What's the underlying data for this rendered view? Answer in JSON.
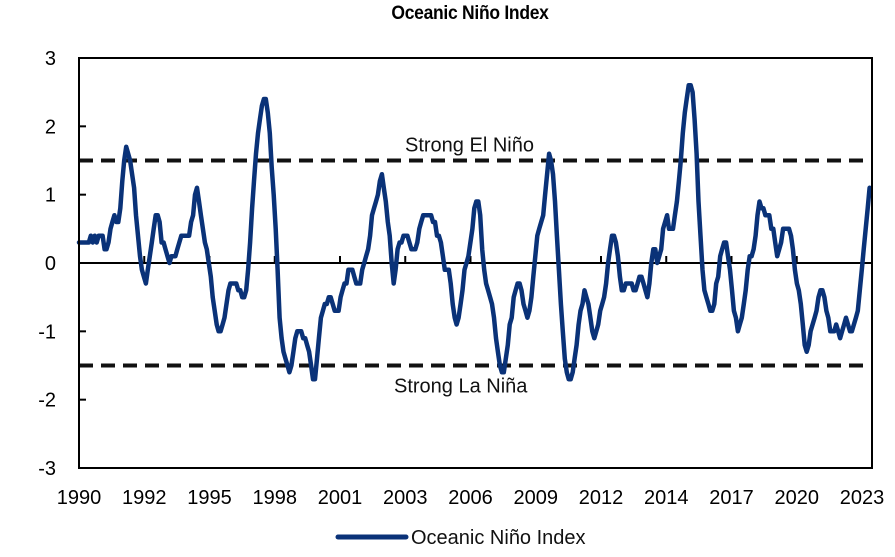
{
  "chart_data": {
    "type": "line",
    "title": "Oceanic Niño Index",
    "xlabel": "",
    "ylabel": "",
    "ylim": [
      -3,
      3
    ],
    "yticks": [
      3,
      2,
      1,
      0,
      -1,
      -2,
      -3
    ],
    "xtick_labels": [
      "1990",
      "1992",
      "1995",
      "1998",
      "2001",
      "2003",
      "2006",
      "2009",
      "2012",
      "2014",
      "2017",
      "2020",
      "2023"
    ],
    "x_range": [
      1990.0,
      2023.6
    ],
    "grid": false,
    "legend": {
      "position": "bottom-center",
      "entries": [
        "Oceanic Niño Index"
      ]
    },
    "reference_lines": [
      {
        "label": "Strong El Niño",
        "value": 1.5,
        "style": "dashed"
      },
      {
        "label": "Strong La Niña",
        "value": -1.5,
        "style": "dashed"
      }
    ],
    "colors": {
      "series": "#0a3278",
      "reference": "#111111",
      "axis": "#000000"
    },
    "series": [
      {
        "name": "Oceanic Niño Index",
        "start_year": 1990.0,
        "step_years": 0.0833333,
        "values": [
          0.3,
          0.3,
          0.3,
          0.3,
          0.3,
          0.3,
          0.4,
          0.3,
          0.4,
          0.3,
          0.4,
          0.4,
          0.4,
          0.2,
          0.2,
          0.3,
          0.5,
          0.6,
          0.7,
          0.6,
          0.6,
          0.8,
          1.2,
          1.5,
          1.7,
          1.6,
          1.5,
          1.3,
          1.1,
          0.7,
          0.4,
          0.1,
          -0.1,
          -0.2,
          -0.3,
          -0.1,
          0.1,
          0.3,
          0.5,
          0.7,
          0.7,
          0.6,
          0.3,
          0.3,
          0.2,
          0.1,
          0.0,
          0.1,
          0.1,
          0.1,
          0.2,
          0.3,
          0.4,
          0.4,
          0.4,
          0.4,
          0.4,
          0.6,
          0.7,
          1.0,
          1.1,
          0.9,
          0.7,
          0.5,
          0.3,
          0.2,
          0.0,
          -0.2,
          -0.5,
          -0.7,
          -0.9,
          -1.0,
          -1.0,
          -0.9,
          -0.8,
          -0.6,
          -0.4,
          -0.3,
          -0.3,
          -0.3,
          -0.3,
          -0.4,
          -0.4,
          -0.5,
          -0.5,
          -0.4,
          -0.1,
          0.3,
          0.8,
          1.2,
          1.6,
          1.9,
          2.1,
          2.3,
          2.4,
          2.4,
          2.2,
          1.9,
          1.4,
          1.0,
          0.5,
          -0.1,
          -0.8,
          -1.1,
          -1.3,
          -1.4,
          -1.5,
          -1.6,
          -1.5,
          -1.3,
          -1.1,
          -1.0,
          -1.0,
          -1.0,
          -1.1,
          -1.1,
          -1.2,
          -1.3,
          -1.5,
          -1.7,
          -1.7,
          -1.4,
          -1.1,
          -0.8,
          -0.7,
          -0.6,
          -0.6,
          -0.5,
          -0.5,
          -0.6,
          -0.7,
          -0.7,
          -0.7,
          -0.5,
          -0.4,
          -0.3,
          -0.3,
          -0.1,
          -0.1,
          -0.1,
          -0.2,
          -0.3,
          -0.3,
          -0.3,
          -0.1,
          0.0,
          0.1,
          0.2,
          0.4,
          0.7,
          0.8,
          0.9,
          1.0,
          1.2,
          1.3,
          1.1,
          0.9,
          0.6,
          0.4,
          0.0,
          -0.3,
          -0.1,
          0.2,
          0.3,
          0.3,
          0.4,
          0.4,
          0.4,
          0.3,
          0.2,
          0.2,
          0.2,
          0.3,
          0.5,
          0.6,
          0.7,
          0.7,
          0.7,
          0.7,
          0.7,
          0.6,
          0.6,
          0.4,
          0.4,
          0.3,
          0.1,
          -0.1,
          -0.1,
          -0.1,
          -0.3,
          -0.6,
          -0.8,
          -0.9,
          -0.8,
          -0.6,
          -0.4,
          -0.1,
          0.0,
          0.1,
          0.3,
          0.5,
          0.8,
          0.9,
          0.9,
          0.7,
          0.2,
          -0.1,
          -0.3,
          -0.4,
          -0.5,
          -0.6,
          -0.8,
          -1.1,
          -1.3,
          -1.5,
          -1.6,
          -1.6,
          -1.4,
          -1.2,
          -0.9,
          -0.8,
          -0.5,
          -0.4,
          -0.3,
          -0.3,
          -0.4,
          -0.6,
          -0.7,
          -0.8,
          -0.7,
          -0.5,
          -0.2,
          0.1,
          0.4,
          0.5,
          0.6,
          0.7,
          1.0,
          1.3,
          1.6,
          1.5,
          1.3,
          0.9,
          0.4,
          -0.1,
          -0.6,
          -1.0,
          -1.4,
          -1.6,
          -1.7,
          -1.7,
          -1.6,
          -1.4,
          -1.2,
          -0.9,
          -0.7,
          -0.6,
          -0.4,
          -0.5,
          -0.6,
          -0.8,
          -1.0,
          -1.1,
          -1.0,
          -0.9,
          -0.7,
          -0.6,
          -0.5,
          -0.3,
          0.0,
          0.2,
          0.4,
          0.4,
          0.3,
          0.1,
          -0.2,
          -0.4,
          -0.4,
          -0.3,
          -0.3,
          -0.3,
          -0.3,
          -0.4,
          -0.4,
          -0.3,
          -0.2,
          -0.2,
          -0.3,
          -0.4,
          -0.5,
          -0.3,
          0.0,
          0.2,
          0.2,
          0.0,
          0.1,
          0.2,
          0.5,
          0.6,
          0.7,
          0.5,
          0.5,
          0.5,
          0.7,
          0.9,
          1.2,
          1.5,
          1.9,
          2.2,
          2.4,
          2.6,
          2.6,
          2.5,
          2.1,
          1.6,
          0.9,
          0.4,
          -0.1,
          -0.4,
          -0.5,
          -0.6,
          -0.7,
          -0.7,
          -0.6,
          -0.3,
          -0.2,
          0.1,
          0.2,
          0.3,
          0.3,
          0.1,
          -0.1,
          -0.4,
          -0.7,
          -0.8,
          -1.0,
          -0.9,
          -0.8,
          -0.6,
          -0.4,
          -0.1,
          0.1,
          0.1,
          0.2,
          0.4,
          0.7,
          0.9,
          0.8,
          0.8,
          0.7,
          0.7,
          0.7,
          0.5,
          0.5,
          0.3,
          0.1,
          0.2,
          0.3,
          0.5,
          0.5,
          0.5,
          0.5,
          0.4,
          0.2,
          -0.1,
          -0.3,
          -0.4,
          -0.6,
          -0.9,
          -1.2,
          -1.3,
          -1.2,
          -1.0,
          -0.9,
          -0.8,
          -0.7,
          -0.5,
          -0.4,
          -0.4,
          -0.5,
          -0.7,
          -0.8,
          -1.0,
          -1.0,
          -1.0,
          -0.9,
          -1.0,
          -1.1,
          -1.0,
          -0.9,
          -0.8,
          -0.9,
          -1.0,
          -1.0,
          -0.9,
          -0.8,
          -0.7,
          -0.4,
          -0.1,
          0.2,
          0.5,
          0.8,
          1.1
        ]
      }
    ]
  }
}
